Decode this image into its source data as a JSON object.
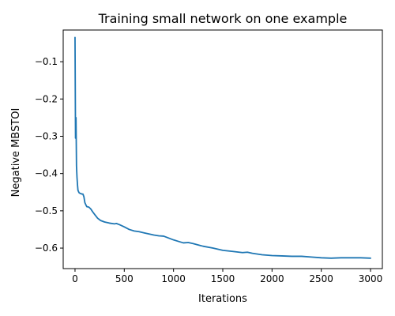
{
  "chart_data": {
    "type": "line",
    "title": "Training small network on one example",
    "xlabel": "Iterations",
    "ylabel": "Negative MBSTOI",
    "xlim": [
      -120,
      3120
    ],
    "ylim": [
      -0.655,
      -0.015
    ],
    "xticks": [
      0,
      500,
      1000,
      1500,
      2000,
      2500,
      3000
    ],
    "yticks": [
      -0.1,
      -0.2,
      -0.3,
      -0.4,
      -0.5,
      -0.6
    ],
    "xtick_labels": [
      "0",
      "500",
      "1000",
      "1500",
      "2000",
      "2500",
      "3000"
    ],
    "ytick_labels": [
      "−0.1",
      "−0.2",
      "−0.3",
      "−0.4",
      "−0.5",
      "−0.6"
    ],
    "grid": false,
    "colors": {
      "line": "#1f77b4",
      "axis": "#000000"
    },
    "series": [
      {
        "x": [
          0,
          5,
          10,
          15,
          20,
          25,
          30,
          40,
          50,
          60,
          70,
          80,
          90,
          100,
          110,
          120,
          140,
          160,
          180,
          200,
          230,
          260,
          300,
          350,
          400,
          420,
          450,
          500,
          550,
          600,
          650,
          700,
          750,
          800,
          850,
          900,
          950,
          1000,
          1050,
          1100,
          1150,
          1200,
          1300,
          1400,
          1500,
          1600,
          1700,
          1750,
          1800,
          1900,
          2000,
          2100,
          2200,
          2300,
          2400,
          2500,
          2600,
          2700,
          2800,
          2900,
          3000
        ],
        "y": [
          -0.035,
          -0.305,
          -0.25,
          -0.38,
          -0.41,
          -0.43,
          -0.445,
          -0.451,
          -0.453,
          -0.454,
          -0.455,
          -0.455,
          -0.462,
          -0.478,
          -0.484,
          -0.489,
          -0.49,
          -0.495,
          -0.503,
          -0.51,
          -0.52,
          -0.526,
          -0.53,
          -0.533,
          -0.535,
          -0.534,
          -0.537,
          -0.543,
          -0.55,
          -0.554,
          -0.556,
          -0.559,
          -0.562,
          -0.565,
          -0.567,
          -0.568,
          -0.573,
          -0.578,
          -0.582,
          -0.586,
          -0.585,
          -0.588,
          -0.595,
          -0.6,
          -0.606,
          -0.609,
          -0.612,
          -0.611,
          -0.614,
          -0.618,
          -0.62,
          -0.621,
          -0.622,
          -0.622,
          -0.624,
          -0.626,
          -0.627,
          -0.626,
          -0.626,
          -0.626,
          -0.627
        ]
      }
    ]
  }
}
